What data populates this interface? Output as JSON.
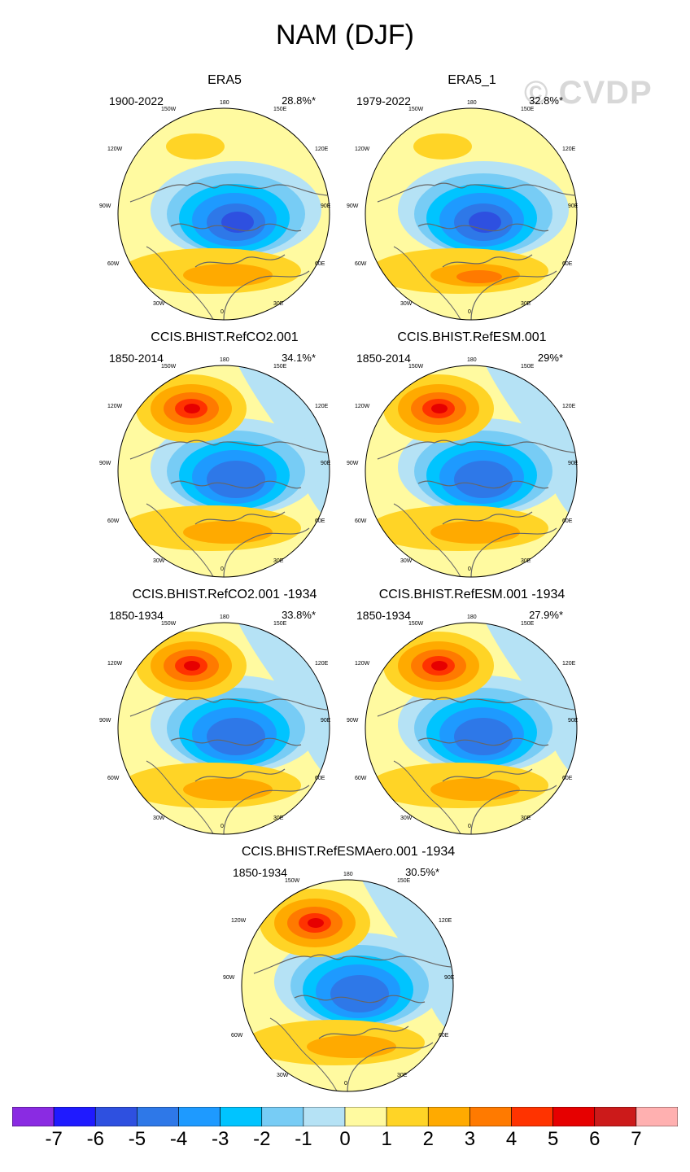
{
  "title": "NAM (DJF)",
  "watermark": "© CVDP",
  "longitude_labels": {
    "top": "180",
    "top_left": "150W",
    "top_right": "150E",
    "upper_left": "120W",
    "upper_right": "120E",
    "left": "90W",
    "right": "90E",
    "lower_left": "60W",
    "lower_right": "60E",
    "bottom_left": "30W",
    "bottom_right": "30E",
    "bottom": "0"
  },
  "panels": [
    {
      "title": "ERA5",
      "period": "1900-2022",
      "pct": "28.8%*",
      "pacific_high": false,
      "atl_high": 3,
      "arctic_low": 6
    },
    {
      "title": "ERA5_1",
      "period": "1979-2022",
      "pct": "32.8%*",
      "pacific_high": false,
      "atl_high": 4,
      "arctic_low": 6
    },
    {
      "title": "CCIS.BHIST.RefCO2.001",
      "period": "1850-2014",
      "pct": "34.1%*",
      "pacific_high": true,
      "atl_high": 3,
      "arctic_low": 5
    },
    {
      "title": "CCIS.BHIST.RefESM.001",
      "period": "1850-2014",
      "pct": "29%*",
      "pacific_high": true,
      "atl_high": 3,
      "arctic_low": 5
    },
    {
      "title": "CCIS.BHIST.RefCO2.001 -1934",
      "period": "1850-1934",
      "pct": "33.8%*",
      "pacific_high": true,
      "atl_high": 3,
      "arctic_low": 5
    },
    {
      "title": "CCIS.BHIST.RefESM.001 -1934",
      "period": "1850-1934",
      "pct": "27.9%*",
      "pacific_high": true,
      "atl_high": 3,
      "arctic_low": 5
    },
    {
      "title": "CCIS.BHIST.RefESMAero.001 -1934",
      "period": "1850-1934",
      "pct": "30.5%*",
      "pacific_high": true,
      "atl_high": 3,
      "arctic_low": 5
    }
  ],
  "colorbar": {
    "colors": [
      "#8a2be2",
      "#1f1aff",
      "#2e50e0",
      "#2e78e8",
      "#1e9aff",
      "#00c4ff",
      "#77ccf5",
      "#b5e2f5",
      "#fffaa0",
      "#ffd426",
      "#ffaa00",
      "#ff7a00",
      "#ff3300",
      "#e60000",
      "#cc1a1a",
      "#ffb0b0"
    ],
    "labels": [
      "-7",
      "-6",
      "-5",
      "-4",
      "-3",
      "-2",
      "-1",
      "0",
      "1",
      "2",
      "3",
      "4",
      "5",
      "6",
      "7"
    ]
  }
}
